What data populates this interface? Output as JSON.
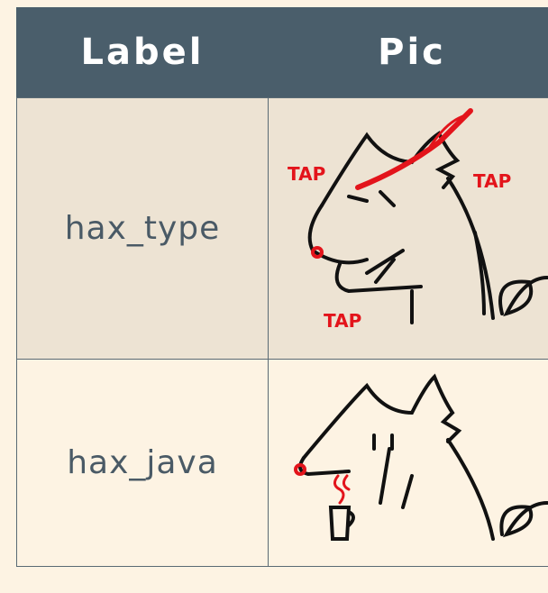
{
  "table": {
    "header": [
      "Label",
      "Pic"
    ],
    "rows": [
      {
        "label": "hax_type",
        "pic_text": [
          "TAP",
          "TAP",
          "TAP"
        ]
      },
      {
        "label": "hax_java",
        "pic_text": []
      }
    ]
  }
}
